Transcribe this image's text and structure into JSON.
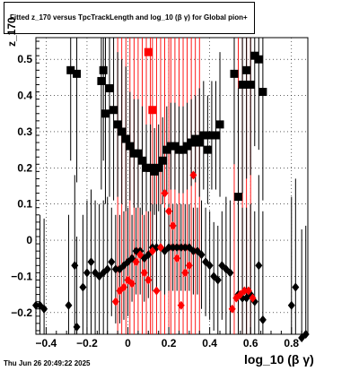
{
  "window": {
    "title": "Fitted  z_170  versus TpcTrackLength and log_10 (β γ) for Global pion+",
    "footer": "Thu Jun 26 20:49:22 2025"
  },
  "chart_data": {
    "type": "scatter",
    "title": "Fitted  z_170  versus TpcTrackLength and log_10 (β γ) for Global pion+",
    "xlabel": "log_10 (β γ)",
    "ylabel": "z_170",
    "xlim": [
      -0.45,
      0.88
    ],
    "ylim": [
      -0.26,
      0.56
    ],
    "grid": true,
    "xticks": [
      -0.4,
      -0.2,
      0,
      0.2,
      0.4,
      0.6,
      0.8
    ],
    "xtick_labels": [
      "−0.4",
      "−0.2",
      "0",
      "0.2",
      "0.4",
      "0.6",
      "0.8"
    ],
    "yticks": [
      -0.2,
      -0.1,
      0,
      0.1,
      0.2,
      0.3,
      0.4,
      0.5
    ],
    "ytick_labels": [
      "−0.2",
      "−0.1",
      "0",
      "0.1",
      "0.2",
      "0.3",
      "0.4",
      "0.5"
    ],
    "colors": {
      "black": "#000000",
      "red": "#ff0000"
    },
    "red_lines_x": [
      -0.05,
      -0.03,
      -0.01,
      0.01,
      0.03,
      0.05,
      0.07,
      0.09,
      0.11,
      0.12,
      0.14,
      0.16,
      0.18,
      0.2,
      0.21,
      0.23,
      0.25,
      0.27,
      0.29,
      0.31,
      0.33,
      0.35,
      0.52,
      0.54,
      0.56,
      0.58,
      0.6
    ],
    "series": [
      {
        "color": "black",
        "marker": "square",
        "points": [
          {
            "x": -0.28,
            "y": 0.47,
            "err": 0.25
          },
          {
            "x": -0.25,
            "y": 0.46,
            "err": 0.3
          },
          {
            "x": -0.13,
            "y": 0.44,
            "err": 0.3
          },
          {
            "x": -0.12,
            "y": 0.47,
            "err": 0.25
          },
          {
            "x": -0.11,
            "y": 0.35,
            "err": 0.25
          },
          {
            "x": -0.09,
            "y": 0.42,
            "err": 0.3
          },
          {
            "x": -0.07,
            "y": 0.36,
            "err": 0.25
          },
          {
            "x": -0.05,
            "y": 0.32,
            "err": 0.2
          },
          {
            "x": -0.03,
            "y": 0.3,
            "err": 0.2
          },
          {
            "x": -0.01,
            "y": 0.28,
            "err": 0.2
          },
          {
            "x": 0.01,
            "y": 0.26,
            "err": 0.15
          },
          {
            "x": 0.03,
            "y": 0.24,
            "err": 0.15
          },
          {
            "x": 0.05,
            "y": 0.24,
            "err": 0.15
          },
          {
            "x": 0.07,
            "y": 0.22,
            "err": 0.15
          },
          {
            "x": 0.09,
            "y": 0.2,
            "err": 0.12
          },
          {
            "x": 0.11,
            "y": 0.2,
            "err": 0.12
          },
          {
            "x": 0.13,
            "y": 0.19,
            "err": 0.12
          },
          {
            "x": 0.15,
            "y": 0.2,
            "err": 0.12
          },
          {
            "x": 0.17,
            "y": 0.22,
            "err": 0.12
          },
          {
            "x": 0.19,
            "y": 0.25,
            "err": 0.12
          },
          {
            "x": 0.21,
            "y": 0.26,
            "err": 0.12
          },
          {
            "x": 0.23,
            "y": 0.26,
            "err": 0.12
          },
          {
            "x": 0.25,
            "y": 0.25,
            "err": 0.12
          },
          {
            "x": 0.27,
            "y": 0.25,
            "err": 0.12
          },
          {
            "x": 0.29,
            "y": 0.26,
            "err": 0.12
          },
          {
            "x": 0.31,
            "y": 0.27,
            "err": 0.12
          },
          {
            "x": 0.33,
            "y": 0.28,
            "err": 0.12
          },
          {
            "x": 0.35,
            "y": 0.27,
            "err": 0.15
          },
          {
            "x": 0.37,
            "y": 0.29,
            "err": 0.15
          },
          {
            "x": 0.39,
            "y": 0.25,
            "err": 0.15
          },
          {
            "x": 0.41,
            "y": 0.29,
            "err": 0.15
          },
          {
            "x": 0.43,
            "y": 0.29,
            "err": 0.15
          },
          {
            "x": 0.45,
            "y": 0.32,
            "err": 0.2
          },
          {
            "x": 0.52,
            "y": 0.46,
            "err": 0.25
          },
          {
            "x": 0.54,
            "y": 0.12,
            "err": 0.3
          },
          {
            "x": 0.56,
            "y": 0.43,
            "err": 0.3
          },
          {
            "x": 0.58,
            "y": 0.47,
            "err": 0.3
          },
          {
            "x": 0.6,
            "y": 0.43,
            "err": 0.25
          },
          {
            "x": 0.62,
            "y": 0.51,
            "err": 0.25
          },
          {
            "x": 0.64,
            "y": 0.5,
            "err": 0.25
          },
          {
            "x": 0.66,
            "y": 0.41,
            "err": 0.3
          }
        ]
      },
      {
        "color": "red",
        "marker": "square",
        "points": [
          {
            "x": 0.1,
            "y": 0.52,
            "err": 0
          },
          {
            "x": 0.12,
            "y": 0.36,
            "err": 0
          }
        ]
      },
      {
        "color": "black",
        "marker": "diamond",
        "points": [
          {
            "x": -0.45,
            "y": -0.18,
            "err": 0.25
          },
          {
            "x": -0.43,
            "y": -0.18,
            "err": 0.25
          },
          {
            "x": -0.41,
            "y": -0.19,
            "err": 0.25
          },
          {
            "x": -0.29,
            "y": -0.18,
            "err": 0.25
          },
          {
            "x": -0.25,
            "y": -0.24,
            "err": 0.25
          },
          {
            "x": -0.26,
            "y": -0.07,
            "err": 0.25
          },
          {
            "x": -0.22,
            "y": -0.13,
            "err": 0.2
          },
          {
            "x": -0.2,
            "y": -0.09,
            "err": 0.2
          },
          {
            "x": -0.18,
            "y": -0.06,
            "err": 0.2
          },
          {
            "x": -0.16,
            "y": -0.09,
            "err": 0.2
          },
          {
            "x": -0.14,
            "y": -0.1,
            "err": 0.2
          },
          {
            "x": -0.12,
            "y": -0.09,
            "err": 0.2
          },
          {
            "x": -0.1,
            "y": -0.08,
            "err": 0.2
          },
          {
            "x": -0.08,
            "y": -0.06,
            "err": 0.15
          },
          {
            "x": -0.06,
            "y": -0.08,
            "err": 0.15
          },
          {
            "x": -0.04,
            "y": -0.08,
            "err": 0.15
          },
          {
            "x": -0.02,
            "y": -0.07,
            "err": 0.15
          },
          {
            "x": 0.0,
            "y": -0.06,
            "err": 0.15
          },
          {
            "x": 0.02,
            "y": -0.05,
            "err": 0.12
          },
          {
            "x": 0.04,
            "y": -0.03,
            "err": 0.12
          },
          {
            "x": 0.06,
            "y": -0.03,
            "err": 0.12
          },
          {
            "x": 0.08,
            "y": -0.05,
            "err": 0.12
          },
          {
            "x": 0.1,
            "y": -0.04,
            "err": 0.12
          },
          {
            "x": 0.12,
            "y": -0.02,
            "err": 0.12
          },
          {
            "x": 0.14,
            "y": -0.02,
            "err": 0.12
          },
          {
            "x": 0.16,
            "y": -0.02,
            "err": 0.12
          },
          {
            "x": 0.18,
            "y": -0.03,
            "err": 0.12
          },
          {
            "x": 0.2,
            "y": -0.02,
            "err": 0.12
          },
          {
            "x": 0.22,
            "y": -0.02,
            "err": 0.12
          },
          {
            "x": 0.24,
            "y": -0.02,
            "err": 0.12
          },
          {
            "x": 0.26,
            "y": -0.02,
            "err": 0.12
          },
          {
            "x": 0.28,
            "y": -0.02,
            "err": 0.12
          },
          {
            "x": 0.3,
            "y": -0.02,
            "err": 0.12
          },
          {
            "x": 0.32,
            "y": -0.03,
            "err": 0.12
          },
          {
            "x": 0.34,
            "y": -0.03,
            "err": 0.12
          },
          {
            "x": 0.36,
            "y": -0.04,
            "err": 0.15
          },
          {
            "x": 0.38,
            "y": -0.06,
            "err": 0.15
          },
          {
            "x": 0.4,
            "y": -0.07,
            "err": 0.15
          },
          {
            "x": 0.42,
            "y": -0.1,
            "err": 0.15
          },
          {
            "x": 0.44,
            "y": -0.11,
            "err": 0.15
          },
          {
            "x": 0.46,
            "y": -0.07,
            "err": 0.15
          },
          {
            "x": 0.48,
            "y": -0.08,
            "err": 0.2
          },
          {
            "x": 0.5,
            "y": -0.09,
            "err": 0.2
          },
          {
            "x": 0.54,
            "y": -0.15,
            "err": 0.25
          },
          {
            "x": 0.56,
            "y": -0.16,
            "err": 0.25
          },
          {
            "x": 0.58,
            "y": -0.16,
            "err": 0.25
          },
          {
            "x": 0.6,
            "y": -0.15,
            "err": 0.25
          },
          {
            "x": 0.62,
            "y": -0.17,
            "err": 0.25
          },
          {
            "x": 0.64,
            "y": -0.07,
            "err": 0.25
          },
          {
            "x": 0.66,
            "y": -0.22,
            "err": 0.3
          },
          {
            "x": 0.8,
            "y": -0.18,
            "err": 0.3
          },
          {
            "x": 0.82,
            "y": -0.13,
            "err": 0.3
          },
          {
            "x": 0.85,
            "y": -0.27,
            "err": 0.3
          },
          {
            "x": 0.87,
            "y": -0.26,
            "err": 0.3
          }
        ]
      },
      {
        "color": "red",
        "marker": "diamond",
        "points": [
          {
            "x": -0.06,
            "y": -0.17,
            "err": 0
          },
          {
            "x": -0.04,
            "y": -0.14,
            "err": 0
          },
          {
            "x": -0.02,
            "y": -0.13,
            "err": 0
          },
          {
            "x": 0.0,
            "y": -0.11,
            "err": 0
          },
          {
            "x": 0.02,
            "y": -0.12,
            "err": 0
          },
          {
            "x": 0.04,
            "y": -0.06,
            "err": 0
          },
          {
            "x": 0.06,
            "y": -0.04,
            "err": 0
          },
          {
            "x": 0.08,
            "y": -0.09,
            "err": 0
          },
          {
            "x": 0.1,
            "y": -0.11,
            "err": 0
          },
          {
            "x": 0.12,
            "y": -0.03,
            "err": 0
          },
          {
            "x": 0.14,
            "y": -0.14,
            "err": 0
          },
          {
            "x": 0.16,
            "y": -0.02,
            "err": 0
          },
          {
            "x": 0.18,
            "y": 0.13,
            "err": 0
          },
          {
            "x": 0.2,
            "y": 0.08,
            "err": 0
          },
          {
            "x": 0.22,
            "y": 0.04,
            "err": 0
          },
          {
            "x": 0.24,
            "y": -0.05,
            "err": 0
          },
          {
            "x": 0.26,
            "y": -0.18,
            "err": 0
          },
          {
            "x": 0.28,
            "y": -0.09,
            "err": 0
          },
          {
            "x": 0.3,
            "y": -0.07,
            "err": 0
          },
          {
            "x": 0.32,
            "y": 0.18,
            "err": 0
          },
          {
            "x": 0.51,
            "y": -0.19,
            "err": 0
          },
          {
            "x": 0.53,
            "y": -0.16,
            "err": 0
          },
          {
            "x": 0.55,
            "y": -0.15,
            "err": 0
          },
          {
            "x": 0.57,
            "y": -0.14,
            "err": 0
          },
          {
            "x": 0.59,
            "y": -0.14,
            "err": 0
          },
          {
            "x": 0.61,
            "y": -0.16,
            "err": 0
          }
        ]
      }
    ]
  }
}
